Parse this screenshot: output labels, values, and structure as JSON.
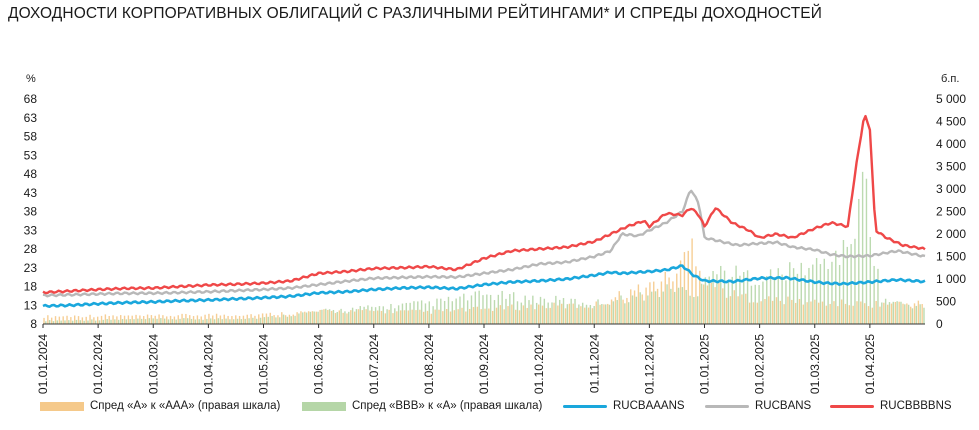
{
  "title": "ДОХОДНОСТИ КОРПОРАТИВНЫХ ОБЛИГАЦИЙ С РАЗЛИЧНЫМИ РЕЙТИНГАМИ* И СПРЕДЫ ДОХОДНОСТЕЙ",
  "chart_data": {
    "type": "line+bar",
    "title": "ДОХОДНОСТИ КОРПОРАТИВНЫХ ОБЛИГАЦИЙ С РАЗЛИЧНЫМИ РЕЙТИНГАМИ* И СПРЕДЫ ДОХОДНОСТЕЙ",
    "left_axis": {
      "unit": "%",
      "ylim": [
        8,
        68
      ],
      "ticks": [
        "68",
        "63",
        "58",
        "53",
        "48",
        "43",
        "38",
        "33",
        "28",
        "23",
        "18",
        "13",
        "8"
      ]
    },
    "right_axis": {
      "unit": "б.п.",
      "ylim": [
        0,
        5000
      ],
      "ticks": [
        "5 000",
        "4 500",
        "4 000",
        "3 500",
        "3 000",
        "2 500",
        "2 000",
        "1 500",
        "1 000",
        "500",
        "0"
      ]
    },
    "x_tick_labels": [
      "01.01.2024",
      "01.02.2024",
      "01.03.2024",
      "01.04.2024",
      "01.05.2024",
      "01.06.2024",
      "01.07.2024",
      "01.08.2024",
      "01.09.2024",
      "01.10.2024",
      "01.11.2024",
      "01.12.2024",
      "01.01.2025",
      "01.02.2025",
      "01.03.2025",
      "01.04.2025"
    ],
    "x_month_index_range": [
      0,
      16
    ],
    "legend": [
      {
        "label": "Спред «А» к «AAA» (правая шкала)",
        "kind": "bar",
        "color": "#f5c98a"
      },
      {
        "label": "Спред «BBB» к «A» (правая шкала)",
        "kind": "bar",
        "color": "#b5d6a7"
      },
      {
        "label": "RUCBAAANS",
        "kind": "line",
        "color": "#1aa7dc"
      },
      {
        "label": "RUCBANS",
        "kind": "line",
        "color": "#b8b8b8"
      },
      {
        "label": "RUCBBBBNS",
        "kind": "line",
        "color": "#ef4848"
      }
    ],
    "series": [
      {
        "name": "RUCBAAANS",
        "axis": "left",
        "color": "#1aa7dc",
        "x": [
          0,
          0.5,
          1,
          1.5,
          2,
          2.5,
          3,
          3.5,
          4,
          4.5,
          5,
          5.5,
          6,
          6.5,
          7,
          7.5,
          8,
          8.5,
          9,
          9.5,
          10,
          10.3,
          10.5,
          11,
          11.3,
          11.6,
          11.8,
          12,
          12.5,
          13,
          13.5,
          14,
          14.2,
          14.5,
          15,
          15.5,
          16
        ],
        "values": [
          12.8,
          13.0,
          13.4,
          13.7,
          13.9,
          14.2,
          14.4,
          14.7,
          15.0,
          15.4,
          16.3,
          16.6,
          17.2,
          17.6,
          17.8,
          17.4,
          18.5,
          19.2,
          19.5,
          20.0,
          21.0,
          21.8,
          21.5,
          22.0,
          22.4,
          23.5,
          21.0,
          19.5,
          19.3,
          20.2,
          20.3,
          19.2,
          18.9,
          18.7,
          19.2,
          19.8,
          19.3
        ]
      },
      {
        "name": "RUCBANS",
        "axis": "left",
        "color": "#b8b8b8",
        "x": [
          0,
          0.5,
          1,
          1.5,
          2,
          2.5,
          3,
          3.5,
          4,
          4.5,
          5,
          5.5,
          6,
          6.5,
          7,
          7.5,
          8,
          8.5,
          9,
          9.5,
          10,
          10.3,
          10.5,
          10.8,
          11,
          11.3,
          11.6,
          11.75,
          11.9,
          12,
          12.3,
          12.6,
          13,
          13.3,
          13.6,
          14,
          14.3,
          14.6,
          15,
          15.5,
          16
        ],
        "values": [
          15.6,
          15.8,
          16.0,
          16.2,
          16.2,
          16.4,
          16.6,
          16.9,
          17.2,
          17.6,
          18.5,
          19.4,
          20.2,
          20.4,
          20.6,
          20.5,
          21.5,
          22.5,
          24.0,
          24.5,
          26.0,
          27.5,
          32.0,
          31.5,
          33.0,
          35.0,
          38.0,
          44.0,
          40.0,
          31.0,
          30.0,
          29.0,
          29.5,
          29.8,
          28.5,
          27.8,
          26.5,
          26.0,
          26.2,
          27.5,
          26.0
        ]
      },
      {
        "name": "RUCBBBBNS",
        "axis": "left",
        "color": "#ef4848",
        "x": [
          0,
          0.5,
          1,
          1.5,
          2,
          2.5,
          3,
          3.5,
          4,
          4.5,
          5,
          5.5,
          6,
          6.5,
          7,
          7.5,
          8,
          8.5,
          9,
          9.5,
          10,
          10.3,
          10.6,
          10.9,
          11,
          11.3,
          11.6,
          11.75,
          11.9,
          12,
          12.2,
          12.5,
          12.8,
          13,
          13.3,
          13.6,
          14,
          14.3,
          14.6,
          14.75,
          14.9,
          15.0,
          15.1,
          15.3,
          15.6,
          16
        ],
        "values": [
          16.4,
          16.8,
          17.2,
          17.5,
          17.6,
          18.0,
          18.4,
          18.6,
          18.9,
          19.5,
          21.5,
          22.0,
          22.8,
          23.0,
          23.3,
          22.5,
          25.5,
          27.5,
          28.0,
          28.5,
          30.0,
          32.0,
          34.0,
          35.5,
          34.0,
          37.5,
          37.0,
          39.0,
          37.0,
          34.0,
          39.0,
          35.0,
          33.0,
          31.0,
          32.0,
          31.0,
          33.5,
          35.0,
          34.0,
          50.0,
          64.0,
          60.0,
          33.0,
          31.0,
          29.0,
          28.0
        ]
      },
      {
        "name": "Спред «А» к «AAA» (правая шкала)",
        "axis": "right",
        "color": "#f5c98a",
        "kind": "bar",
        "x": [
          0,
          1,
          2,
          3,
          4,
          5,
          6,
          7,
          8,
          9,
          10,
          10.5,
          11,
          11.5,
          11.8,
          12,
          12.5,
          13,
          14,
          15,
          16
        ],
        "values": [
          180,
          200,
          190,
          220,
          230,
          300,
          310,
          290,
          360,
          430,
          440,
          700,
          900,
          1200,
          1950,
          1100,
          700,
          600,
          520,
          480,
          500
        ]
      },
      {
        "name": "Спред «BBB» к «A» (правая шкала)",
        "axis": "right",
        "color": "#b5d6a7",
        "kind": "bar",
        "x": [
          0,
          1,
          2,
          3,
          4,
          5,
          6,
          7,
          8,
          9,
          10,
          10.5,
          11,
          11.5,
          11.8,
          12,
          12.5,
          13,
          14,
          14.5,
          14.75,
          14.9,
          15.0,
          15.2,
          15.5,
          16
        ],
        "values": [
          80,
          100,
          120,
          120,
          150,
          300,
          400,
          500,
          700,
          600,
          500,
          600,
          700,
          900,
          600,
          1300,
          1200,
          1100,
          1400,
          1700,
          2400,
          3700,
          2200,
          600,
          500,
          400
        ]
      }
    ]
  }
}
